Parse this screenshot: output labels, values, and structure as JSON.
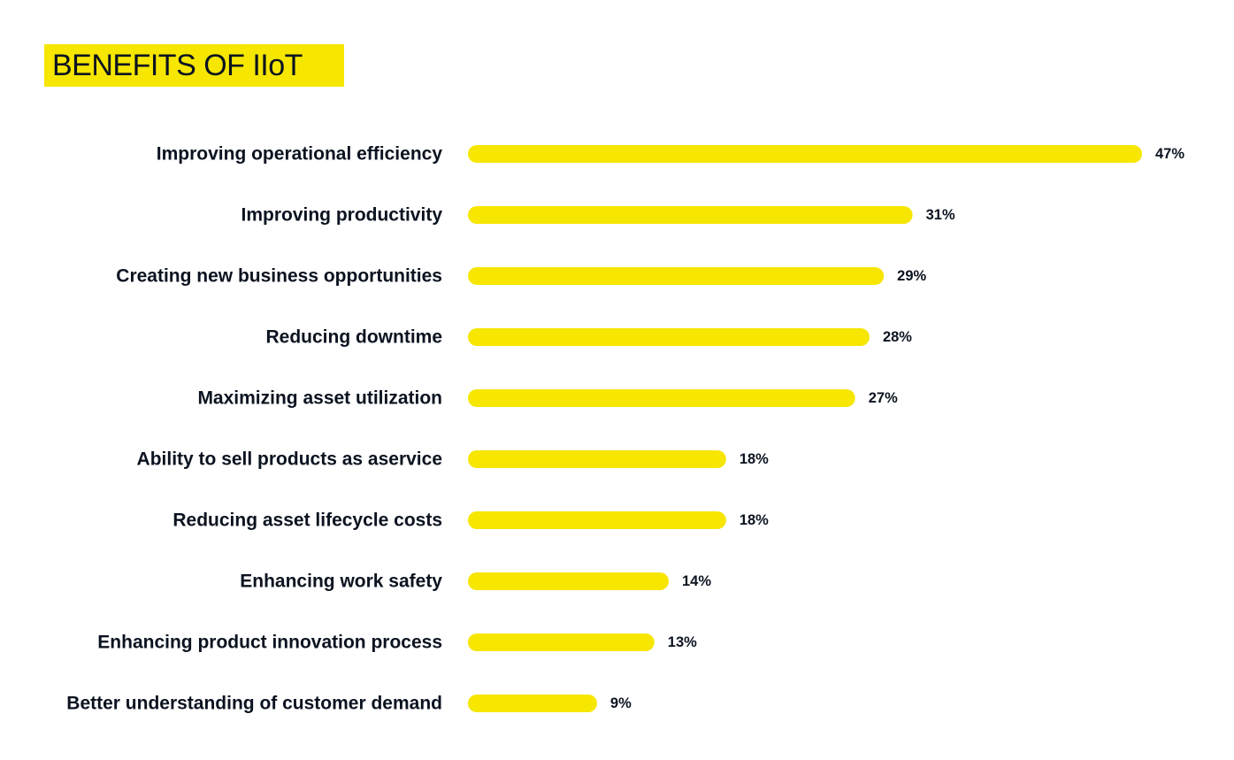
{
  "chart_data": {
    "type": "bar",
    "orientation": "horizontal",
    "title": "BENEFITS OF IIoT",
    "categories": [
      "Improving operational efficiency",
      "Improving productivity",
      "Creating new business opportunities",
      "Reducing downtime",
      "Maximizing asset utilization",
      "Ability to sell products as aservice",
      "Reducing asset lifecycle costs",
      "Enhancing work safety",
      "Enhancing product innovation process",
      "Better understanding of customer demand"
    ],
    "values": [
      47,
      31,
      29,
      28,
      27,
      18,
      18,
      14,
      13,
      9
    ],
    "value_labels": [
      "47%",
      "31%",
      "29%",
      "28%",
      "27%",
      "18%",
      "18%",
      "14%",
      "13%",
      "9%"
    ],
    "unit": "%",
    "xlim": [
      0,
      47
    ],
    "grid": false,
    "xlabel": "",
    "ylabel": ""
  },
  "colors": {
    "bar": "#f6e600",
    "title_bg": "#f6e600",
    "text": "#0b1320"
  }
}
